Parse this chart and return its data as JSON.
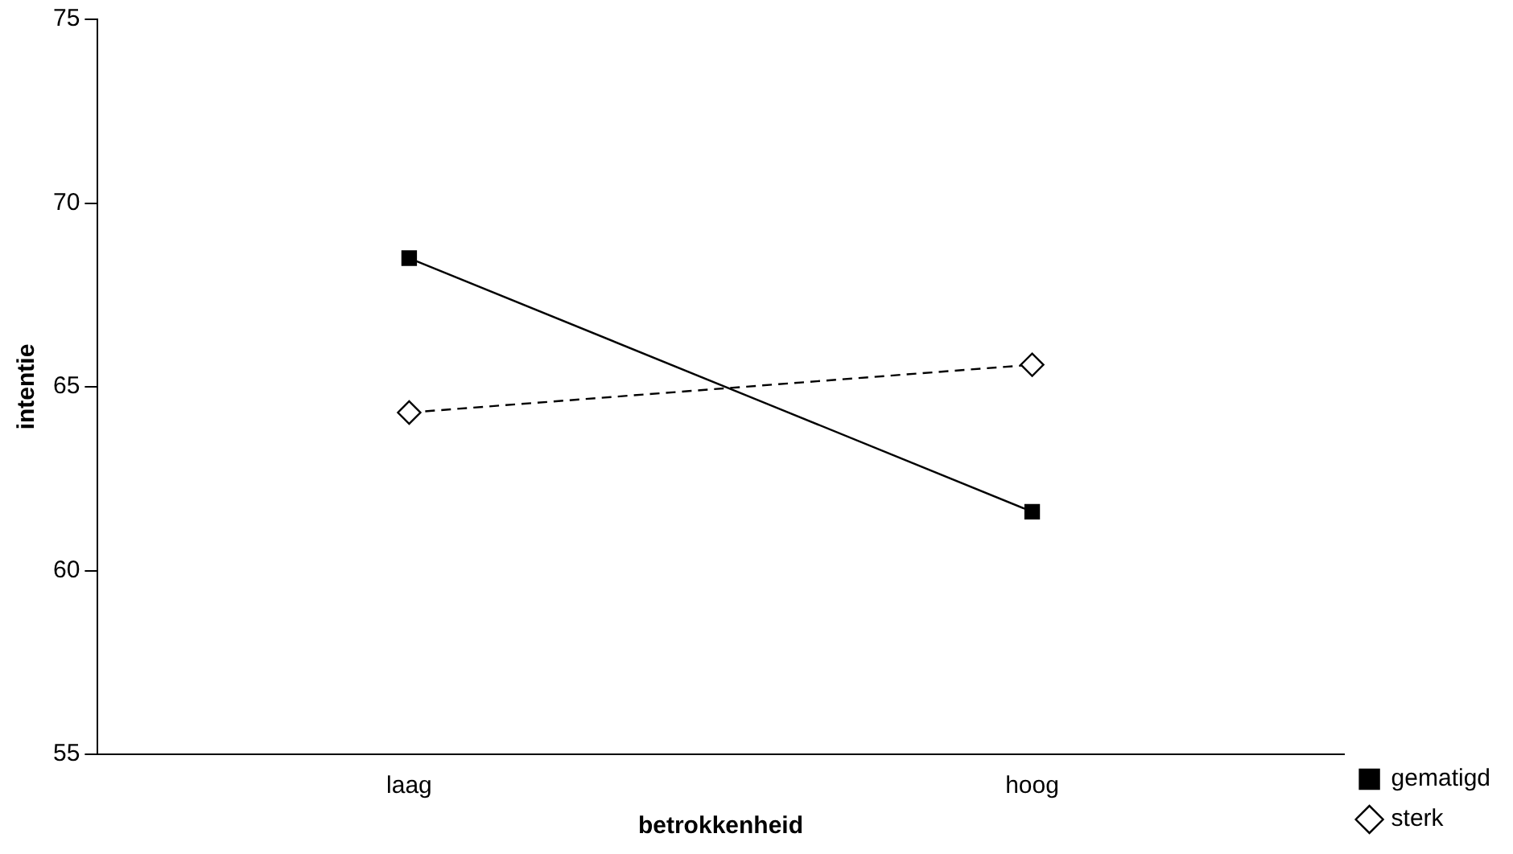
{
  "chart_data": {
    "type": "line",
    "xlabel": "betrokkenheid",
    "ylabel": "intentie",
    "categories": [
      "laag",
      "hoog"
    ],
    "series": [
      {
        "name": "gematigd",
        "color": "#000000",
        "values": [
          68.5,
          61.6
        ],
        "marker": "square",
        "line_style": "solid"
      },
      {
        "name": "sterk",
        "color": "#000000",
        "values": [
          64.3,
          65.6
        ],
        "marker": "diamond",
        "line_style": "dashed"
      }
    ],
    "ylim": [
      55,
      75
    ],
    "yticks": [
      55,
      60,
      65,
      70,
      75
    ],
    "grid": false,
    "legend": "bottom right"
  }
}
